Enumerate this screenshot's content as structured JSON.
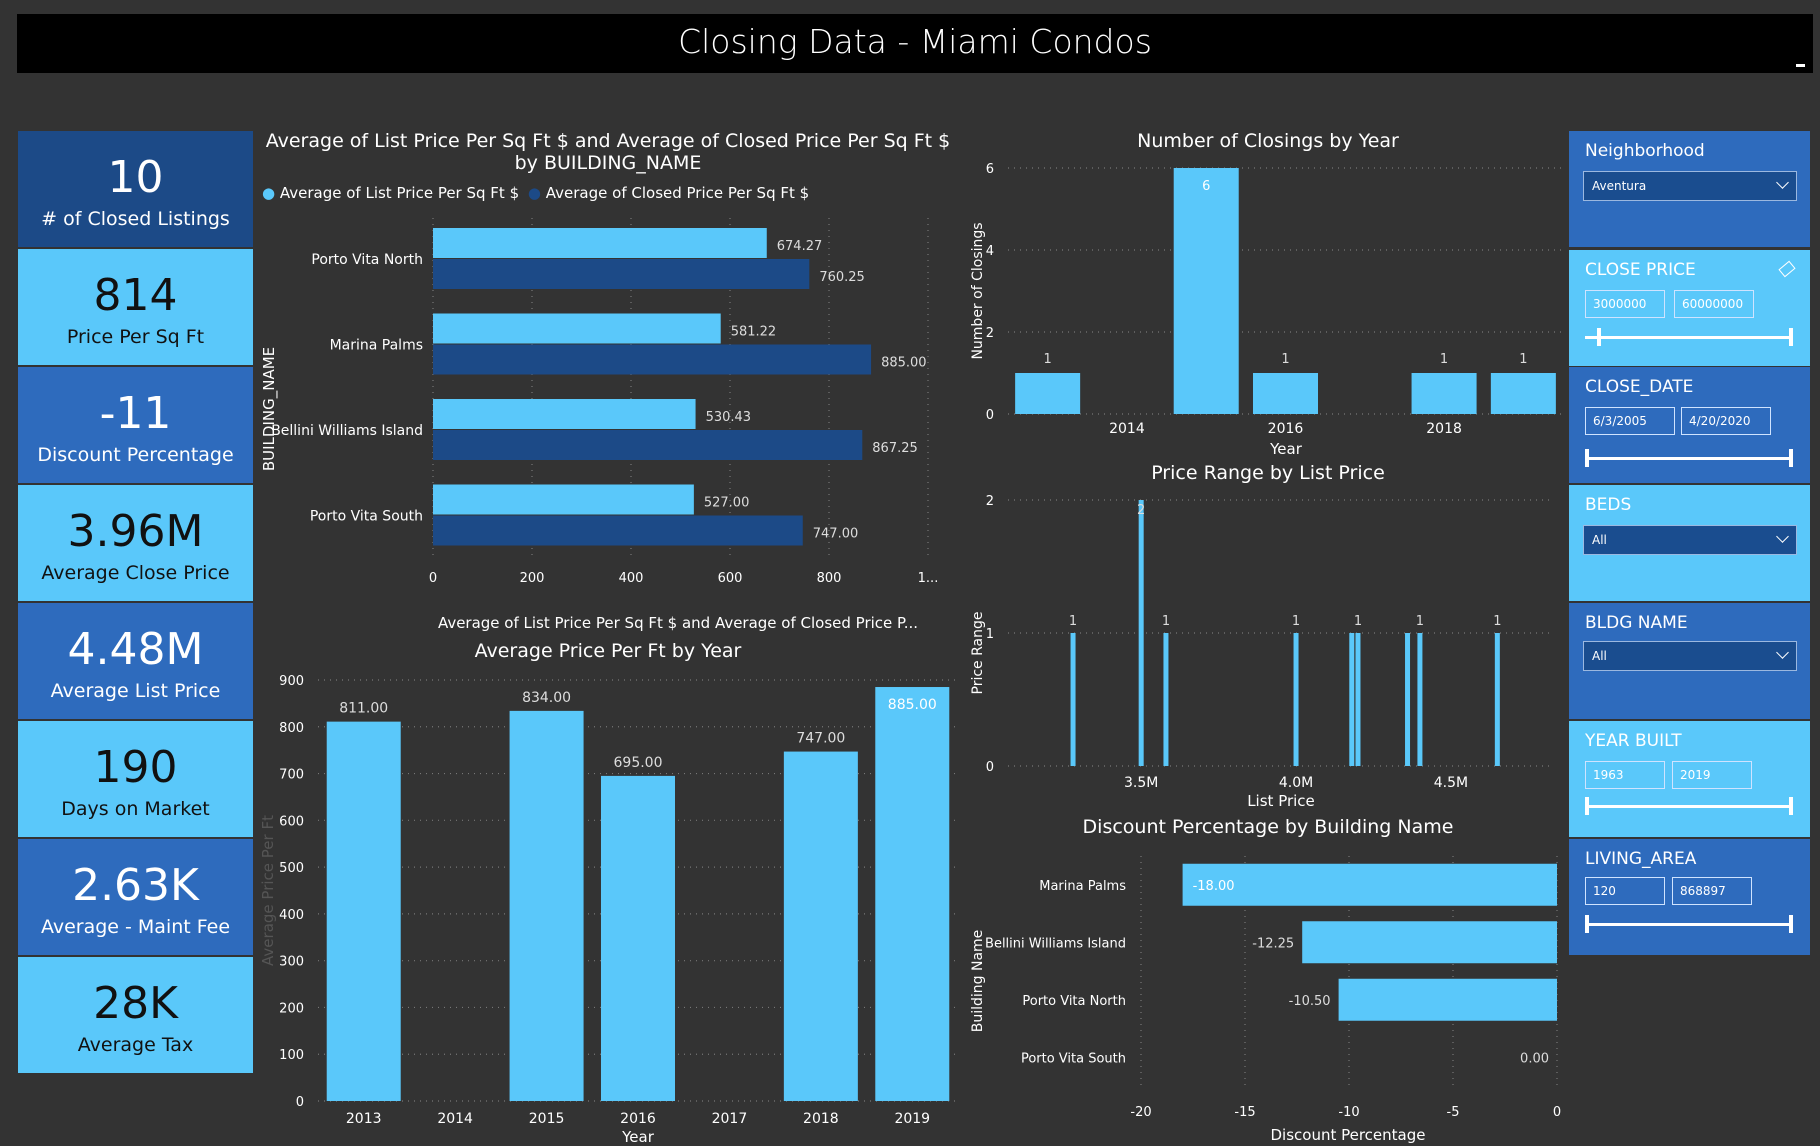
{
  "header": {
    "title": "Closing Data - Miami Condos"
  },
  "kpis": [
    {
      "value": "10",
      "label": "# of Closed Listings"
    },
    {
      "value": "814",
      "label": "Price Per Sq Ft"
    },
    {
      "value": "-11",
      "label": "Discount Percentage"
    },
    {
      "value": "3.96M",
      "label": "Average Close Price"
    },
    {
      "value": "4.48M",
      "label": "Average List Price"
    },
    {
      "value": "190",
      "label": "Days on Market"
    },
    {
      "value": "2.63K",
      "label": "Average - Maint Fee"
    },
    {
      "value": "28K",
      "label": "Average Tax"
    }
  ],
  "slicers": {
    "neighborhood": {
      "header": "Neighborhood",
      "value": "Aventura"
    },
    "close_price": {
      "header": "CLOSE PRICE",
      "min": "3000000",
      "max": "60000000"
    },
    "close_date": {
      "header": "CLOSE_DATE",
      "min": "6/3/2005",
      "max": "4/20/2020"
    },
    "beds": {
      "header": "BEDS",
      "value": "All"
    },
    "bldg_name": {
      "header": "BLDG NAME",
      "value": "All"
    },
    "year_built": {
      "header": "YEAR BUILT",
      "min": "1963",
      "max": "2019"
    },
    "living_area": {
      "header": "LIVING_AREA",
      "min": "120",
      "max": "868897"
    }
  },
  "colors": {
    "light": "#5ac8fa",
    "navy": "#1c4a87",
    "mid": "#2e6bbd",
    "background": "#333333"
  },
  "chart_data": [
    {
      "id": "pps",
      "type": "bar",
      "orientation": "horizontal",
      "title": "Average of List Price Per Sq Ft $ and Average of Closed Price Per Sq Ft $ by BUILDING_NAME",
      "categories": [
        "Porto Vita North",
        "Marina Palms",
        "Bellini Williams Island",
        "Porto Vita South"
      ],
      "series": [
        {
          "name": "Average of List Price Per Sq Ft $",
          "values": [
            674.27,
            581.22,
            530.43,
            527.0
          ],
          "labels": [
            "674.27",
            "581.22",
            "530.43",
            "527.00"
          ]
        },
        {
          "name": "Average of Closed Price Per Sq Ft $",
          "values": [
            760.25,
            885.0,
            867.25,
            747.0
          ],
          "labels": [
            "760.25",
            "885.00",
            "867.25",
            "747.00"
          ]
        }
      ],
      "xlabel": "Average of List Price Per Sq Ft $ and Average of Closed Price P...",
      "ylabel": "BUILDING_NAME",
      "xticks": [
        "0",
        "200",
        "400",
        "600",
        "800",
        "1..."
      ],
      "xlim": [
        0,
        1000
      ],
      "legend": "top"
    },
    {
      "id": "avgyear",
      "type": "bar",
      "title": "Average Price Per Ft by Year",
      "categories": [
        "2013",
        "2014",
        "2015",
        "2016",
        "2017",
        "2018",
        "2019"
      ],
      "values": [
        811.0,
        null,
        834.0,
        695.0,
        null,
        747.0,
        885.0
      ],
      "labels": [
        "811.00",
        "",
        "834.00",
        "695.00",
        "",
        "747.00",
        "885.00"
      ],
      "xlabel": "Year",
      "ylabel": "Average Price Per Ft",
      "yticks": [
        "0",
        "100",
        "200",
        "300",
        "400",
        "500",
        "600",
        "700",
        "800",
        "900"
      ],
      "ylim": [
        0,
        900
      ]
    },
    {
      "id": "closings",
      "type": "bar",
      "title": "Number of Closings by Year",
      "x": [
        2013,
        2015,
        2016,
        2018,
        2019
      ],
      "values": [
        1,
        6,
        1,
        1,
        1
      ],
      "labels": [
        "1",
        "6",
        "1",
        "1",
        "1"
      ],
      "xticks": [
        "2014",
        "2016",
        "2018"
      ],
      "xlabel": "Year",
      "ylabel": "Number of Closings",
      "yticks": [
        "0",
        "2",
        "4",
        "6"
      ],
      "ylim": [
        0,
        6
      ],
      "xlim": [
        2012.5,
        2019.5
      ]
    },
    {
      "id": "pricerange",
      "type": "bar",
      "title": "Price Range by List Price",
      "x": [
        3.28,
        3.5,
        3.58,
        4.0,
        4.18,
        4.2,
        4.36,
        4.4,
        4.65
      ],
      "values": [
        1,
        2,
        1,
        1,
        1,
        1,
        1,
        1,
        1
      ],
      "labels": [
        "1",
        "2",
        "1",
        "1",
        "",
        "1",
        "",
        "1",
        "1"
      ],
      "xticks": [
        "3.5M",
        "4.0M",
        "4.5M"
      ],
      "xlabel": "List Price",
      "ylabel": "Price Range",
      "yticks": [
        "0",
        "1",
        "2"
      ],
      "ylim": [
        0,
        2
      ]
    },
    {
      "id": "discount",
      "type": "bar",
      "orientation": "horizontal",
      "title": "Discount Percentage by Building Name",
      "categories": [
        "Marina Palms",
        "Bellini Williams Island",
        "Porto Vita North",
        "Porto Vita South"
      ],
      "values": [
        -18.0,
        -12.25,
        -10.5,
        0.0
      ],
      "labels": [
        "-18.00",
        "-12.25",
        "-10.50",
        "0.00"
      ],
      "xticks": [
        "-20",
        "-15",
        "-10",
        "-5",
        "0"
      ],
      "xlabel": "Discount Percentage",
      "ylabel": "Building Name",
      "xlim": [
        -20,
        0
      ]
    }
  ]
}
